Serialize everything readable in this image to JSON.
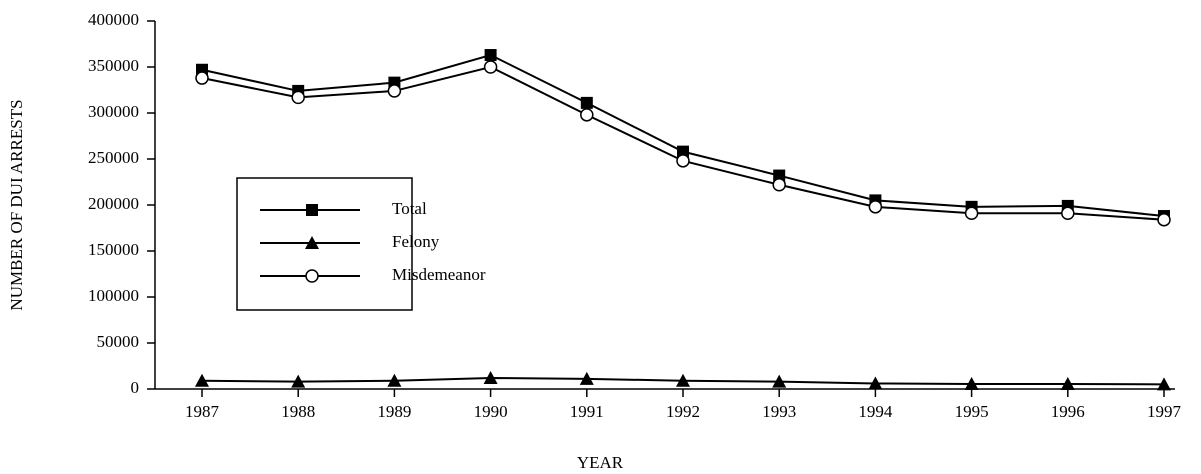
{
  "chart_data": {
    "type": "line",
    "x_label": "YEAR",
    "y_label": "NUMBER OF DUI ARRESTS",
    "categories": [
      "1987",
      "1988",
      "1989",
      "1990",
      "1991",
      "1992",
      "1993",
      "1994",
      "1995",
      "1996",
      "1997"
    ],
    "series": [
      {
        "name": "Total",
        "color": "#000000",
        "marker": "square",
        "values": [
          347000,
          324000,
          333000,
          363000,
          311000,
          258000,
          232000,
          205000,
          198000,
          199000,
          188000
        ]
      },
      {
        "name": "Felony",
        "color": "#000000",
        "marker": "triangle",
        "values": [
          9000,
          8000,
          9000,
          12000,
          11000,
          9000,
          8000,
          6000,
          5500,
          5500,
          5000
        ]
      },
      {
        "name": "Misdemeanor",
        "color": "#000000",
        "marker": "circle",
        "values": [
          338000,
          317000,
          324000,
          350000,
          298000,
          248000,
          222000,
          198000,
          191000,
          191000,
          184000
        ]
      }
    ],
    "ylim": [
      0,
      400000
    ],
    "yticks": [
      0,
      50000,
      100000,
      150000,
      200000,
      250000,
      300000,
      350000,
      400000
    ],
    "grid": false,
    "legend": "left"
  }
}
